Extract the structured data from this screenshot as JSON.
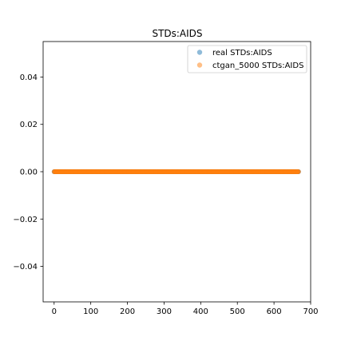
{
  "chart_data": {
    "type": "scatter",
    "title": "STDs:AIDS",
    "xlabel": "",
    "ylabel": "",
    "xlim": [
      -30,
      700
    ],
    "ylim": [
      -0.055,
      0.055
    ],
    "x_ticks": [
      0,
      100,
      200,
      300,
      400,
      500,
      600,
      700
    ],
    "y_ticks": [
      -0.04,
      -0.02,
      0.0,
      0.02,
      0.04
    ],
    "x_tick_labels": [
      "0",
      "100",
      "200",
      "300",
      "400",
      "500",
      "600",
      "700"
    ],
    "y_tick_labels": [
      "−0.04",
      "−0.02",
      "0.00",
      "0.02",
      "0.04"
    ],
    "grid": false,
    "legend_position": "top-right",
    "series": [
      {
        "name": "real STDs:AIDS",
        "color": "#1f77b4",
        "x_range": [
          0,
          667
        ],
        "y_value": 0.0
      },
      {
        "name": "ctgan_5000 STDs:AIDS",
        "color": "#ff7f0e",
        "x_range": [
          0,
          667
        ],
        "y_value": 0.0
      }
    ]
  }
}
